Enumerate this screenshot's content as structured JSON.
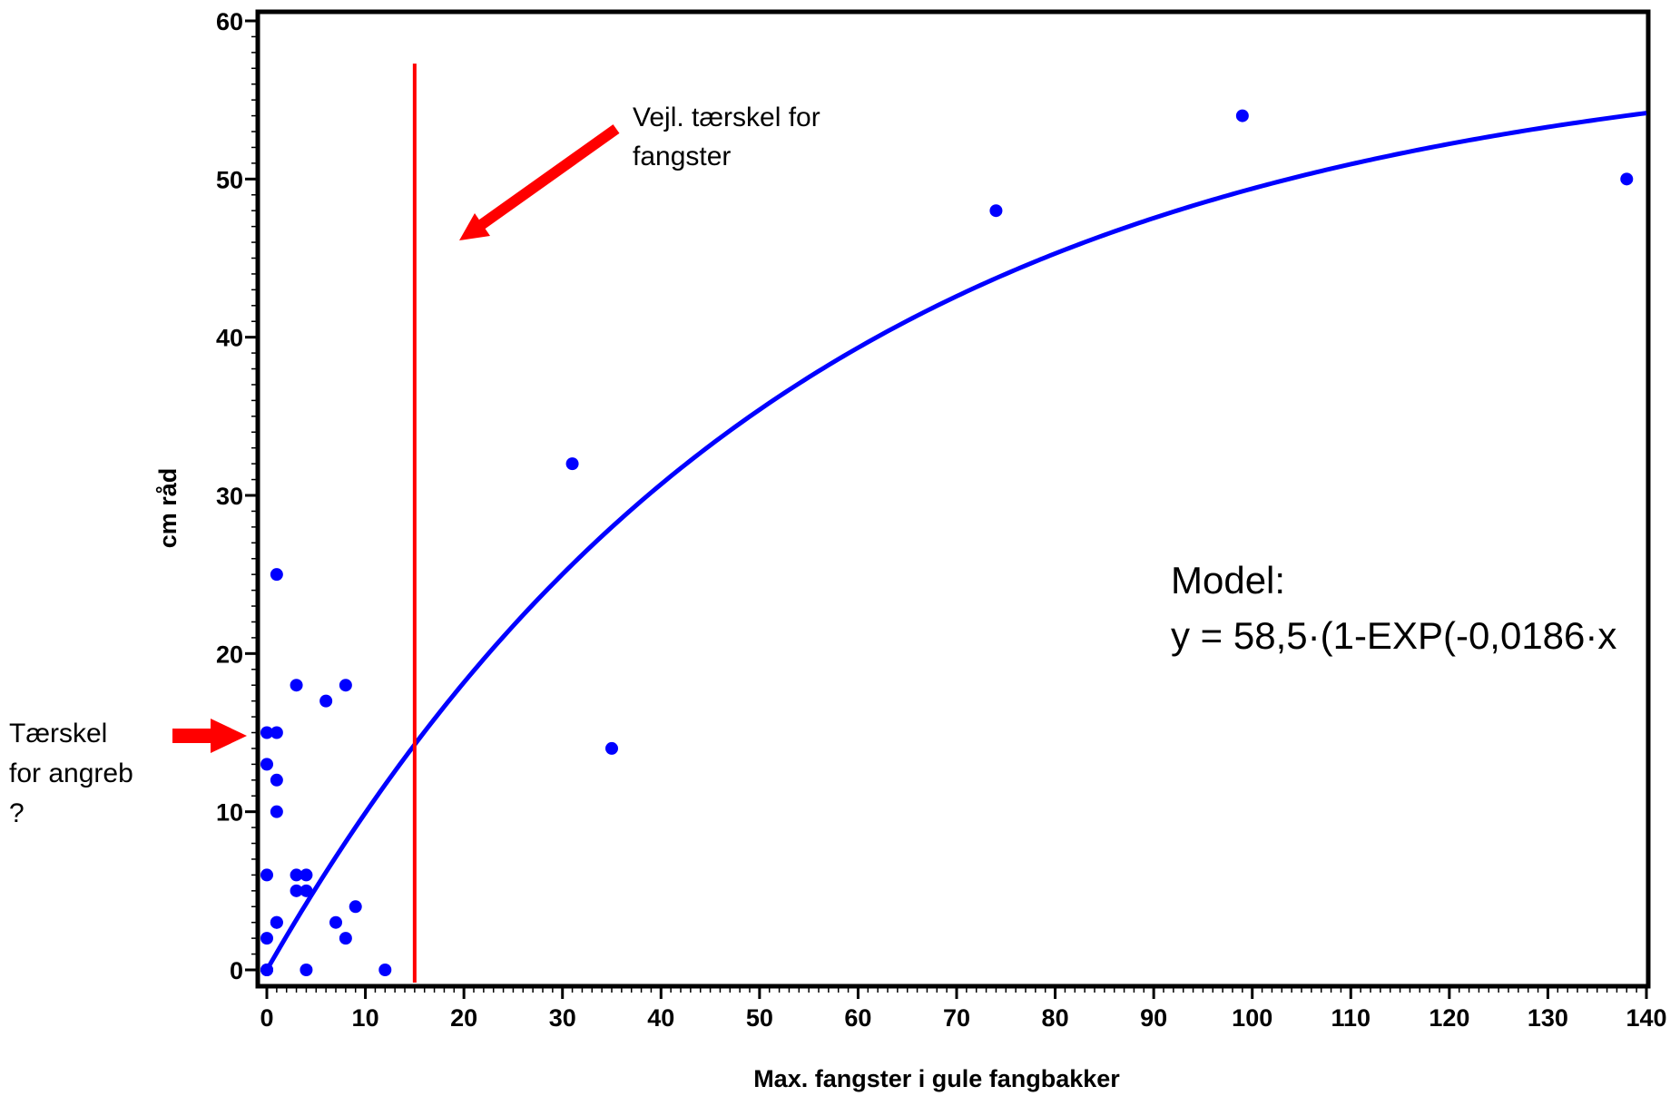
{
  "chart_data": {
    "type": "scatter",
    "xlabel": "Max. fangster i gule fangbakker",
    "ylabel": "cm råd",
    "xlim": [
      0,
      140
    ],
    "ylim": [
      0,
      60
    ],
    "xticks": [
      0,
      10,
      20,
      30,
      40,
      50,
      60,
      70,
      80,
      90,
      100,
      110,
      120,
      130,
      140
    ],
    "yticks": [
      0,
      10,
      20,
      30,
      40,
      50,
      60
    ],
    "grid": false,
    "colors": {
      "points": "#0000ff",
      "curve": "#0000ff",
      "threshold": "#ff0000",
      "arrow": "#ff0000",
      "frame": "#000000"
    },
    "points": {
      "x": [
        0,
        0,
        0,
        0,
        0,
        0,
        1,
        1,
        1,
        1,
        1,
        1,
        3,
        3,
        3,
        4,
        4,
        4,
        6,
        7,
        8,
        8,
        9,
        12,
        31,
        35,
        74,
        99,
        138
      ],
      "y": [
        0,
        2,
        6,
        13,
        15,
        0,
        3,
        10,
        12,
        15,
        25,
        3,
        5,
        6,
        18,
        0,
        5,
        6,
        17,
        3,
        2,
        18,
        4,
        0,
        32,
        14,
        48,
        54,
        50
      ]
    },
    "curve": {
      "a": 58.5,
      "b": 0.0186,
      "x_from": 0,
      "x_to": 140
    },
    "threshold_line": {
      "x": 15,
      "y_from": 0,
      "y_to": 57.3
    },
    "annotations": {
      "threshold_label": [
        "Vejl. tærskel for",
        "fangster"
      ],
      "attack_label": [
        "Tærskel",
        "for angreb",
        "?"
      ],
      "model_label": "Model:",
      "model_formula": "y = 58,5·(1-EXP(-0,0186·x"
    }
  }
}
